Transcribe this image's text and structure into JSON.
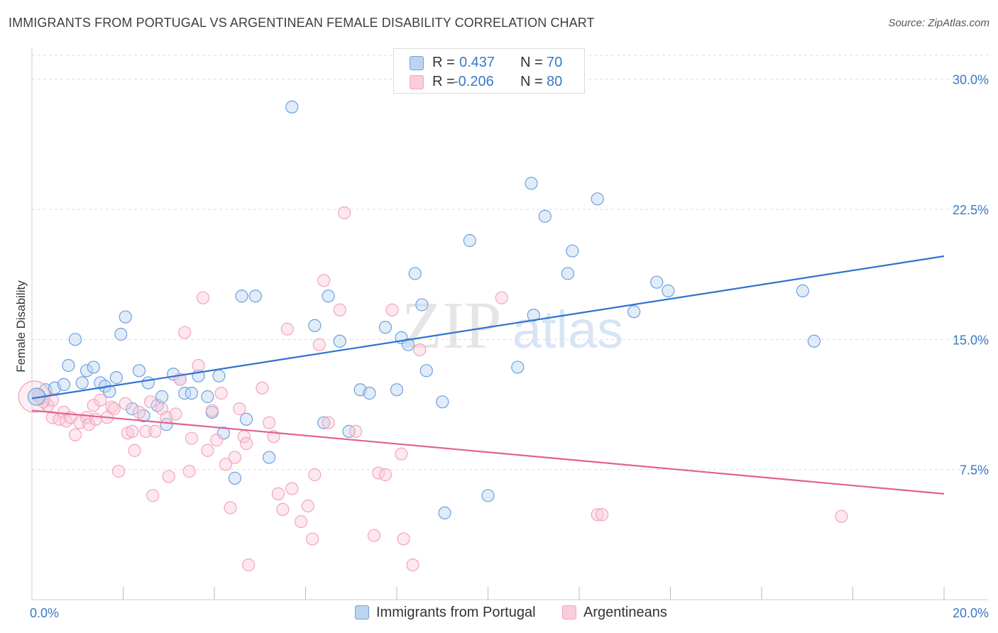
{
  "title": "IMMIGRANTS FROM PORTUGAL VS ARGENTINEAN FEMALE DISABILITY CORRELATION CHART",
  "source": "Source: ZipAtlas.com",
  "watermark": {
    "zip": "ZIP",
    "atlas": "atlas"
  },
  "legend": {
    "r_label": "R =",
    "n_label": "N =",
    "series1": {
      "r": "0.437",
      "n": "70"
    },
    "series2": {
      "r": "-0.206",
      "n": "80"
    }
  },
  "chart_data": {
    "type": "scatter",
    "title": "IMMIGRANTS FROM PORTUGAL VS ARGENTINEAN FEMALE DISABILITY CORRELATION CHART",
    "xlabel": "",
    "ylabel": "Female Disability",
    "xlim": [
      0,
      20
    ],
    "ylim": [
      0,
      31.5
    ],
    "x_tick_labels": [
      "0.0%",
      "20.0%"
    ],
    "y_ticks": [
      7.5,
      15.0,
      22.5,
      30.0
    ],
    "y_tick_labels": [
      "7.5%",
      "15.0%",
      "22.5%",
      "30.0%"
    ],
    "grid": true,
    "legend_position": "top-center",
    "series": [
      {
        "name": "Immigrants from Portugal",
        "color": "#6fa0dc",
        "line_color": "#2f72d0",
        "r": 0.437,
        "n": 70,
        "trend": [
          [
            0,
            11.6
          ],
          [
            20,
            19.8
          ]
        ],
        "points": [
          [
            0.15,
            11.8
          ],
          [
            0.3,
            12.1
          ],
          [
            0.2,
            11.6
          ],
          [
            0.5,
            12.2
          ],
          [
            0.7,
            12.4
          ],
          [
            0.8,
            13.5
          ],
          [
            0.95,
            15.0
          ],
          [
            1.1,
            12.5
          ],
          [
            1.2,
            13.2
          ],
          [
            1.35,
            13.4
          ],
          [
            1.5,
            12.5
          ],
          [
            1.6,
            12.3
          ],
          [
            1.7,
            12.0
          ],
          [
            1.85,
            12.8
          ],
          [
            1.95,
            15.3
          ],
          [
            2.05,
            16.3
          ],
          [
            2.2,
            11.0
          ],
          [
            2.35,
            13.2
          ],
          [
            2.45,
            10.6
          ],
          [
            2.55,
            12.5
          ],
          [
            2.75,
            11.2
          ],
          [
            2.85,
            11.7
          ],
          [
            2.95,
            10.1
          ],
          [
            3.1,
            13.0
          ],
          [
            3.25,
            12.7
          ],
          [
            3.35,
            11.9
          ],
          [
            3.5,
            11.9
          ],
          [
            3.65,
            12.9
          ],
          [
            3.85,
            11.7
          ],
          [
            3.95,
            10.8
          ],
          [
            4.1,
            12.9
          ],
          [
            4.2,
            9.6
          ],
          [
            4.45,
            7.0
          ],
          [
            4.6,
            17.5
          ],
          [
            4.7,
            10.4
          ],
          [
            4.9,
            17.5
          ],
          [
            5.2,
            8.2
          ],
          [
            5.7,
            28.4
          ],
          [
            6.2,
            15.8
          ],
          [
            6.4,
            10.2
          ],
          [
            6.5,
            17.5
          ],
          [
            6.75,
            14.9
          ],
          [
            6.95,
            9.7
          ],
          [
            7.2,
            12.1
          ],
          [
            7.4,
            11.9
          ],
          [
            7.75,
            15.7
          ],
          [
            8.0,
            12.1
          ],
          [
            8.1,
            15.1
          ],
          [
            8.25,
            14.7
          ],
          [
            8.4,
            18.8
          ],
          [
            8.55,
            17.0
          ],
          [
            8.65,
            13.2
          ],
          [
            9.0,
            11.4
          ],
          [
            9.05,
            5.0
          ],
          [
            9.6,
            20.7
          ],
          [
            10.0,
            6.0
          ],
          [
            10.65,
            13.4
          ],
          [
            10.95,
            24.0
          ],
          [
            11.0,
            16.4
          ],
          [
            11.25,
            22.1
          ],
          [
            11.75,
            18.8
          ],
          [
            11.85,
            20.1
          ],
          [
            12.4,
            23.1
          ],
          [
            13.2,
            16.6
          ],
          [
            13.7,
            18.3
          ],
          [
            13.95,
            17.8
          ],
          [
            16.9,
            17.8
          ],
          [
            17.15,
            14.9
          ]
        ]
      },
      {
        "name": "Argentineans",
        "color": "#f3a3bf",
        "line_color": "#e2628f",
        "r": -0.206,
        "n": 80,
        "trend": [
          [
            0,
            10.9
          ],
          [
            20,
            6.1
          ]
        ],
        "points": [
          [
            0.15,
            11.7
          ],
          [
            0.25,
            11.4
          ],
          [
            0.35,
            11.2
          ],
          [
            0.45,
            11.5
          ],
          [
            0.45,
            10.5
          ],
          [
            0.6,
            10.4
          ],
          [
            0.7,
            10.8
          ],
          [
            0.75,
            10.3
          ],
          [
            0.85,
            10.5
          ],
          [
            0.95,
            9.5
          ],
          [
            1.05,
            10.2
          ],
          [
            1.2,
            10.5
          ],
          [
            1.25,
            10.1
          ],
          [
            1.35,
            11.2
          ],
          [
            1.4,
            10.4
          ],
          [
            1.5,
            11.5
          ],
          [
            1.65,
            10.5
          ],
          [
            1.75,
            11.1
          ],
          [
            1.8,
            11.0
          ],
          [
            1.9,
            7.4
          ],
          [
            2.05,
            11.3
          ],
          [
            2.1,
            9.6
          ],
          [
            2.2,
            9.7
          ],
          [
            2.25,
            8.6
          ],
          [
            2.35,
            10.8
          ],
          [
            2.5,
            9.7
          ],
          [
            2.6,
            11.4
          ],
          [
            2.65,
            6.0
          ],
          [
            2.7,
            9.7
          ],
          [
            2.85,
            11.0
          ],
          [
            2.95,
            10.5
          ],
          [
            3.0,
            7.1
          ],
          [
            3.15,
            10.7
          ],
          [
            3.25,
            12.7
          ],
          [
            3.35,
            15.4
          ],
          [
            3.45,
            7.4
          ],
          [
            3.5,
            9.3
          ],
          [
            3.65,
            13.5
          ],
          [
            3.75,
            17.4
          ],
          [
            3.85,
            8.6
          ],
          [
            3.95,
            10.9
          ],
          [
            4.05,
            9.2
          ],
          [
            4.15,
            11.9
          ],
          [
            4.25,
            7.8
          ],
          [
            4.35,
            5.3
          ],
          [
            4.45,
            8.2
          ],
          [
            4.55,
            11.0
          ],
          [
            4.65,
            9.4
          ],
          [
            4.7,
            9.0
          ],
          [
            4.75,
            2.0
          ],
          [
            5.05,
            12.2
          ],
          [
            5.2,
            10.2
          ],
          [
            5.3,
            9.4
          ],
          [
            5.4,
            6.1
          ],
          [
            5.5,
            5.2
          ],
          [
            5.6,
            15.6
          ],
          [
            5.7,
            6.4
          ],
          [
            5.9,
            4.5
          ],
          [
            6.05,
            5.4
          ],
          [
            6.15,
            3.5
          ],
          [
            6.2,
            7.2
          ],
          [
            6.3,
            14.7
          ],
          [
            6.4,
            18.4
          ],
          [
            6.5,
            10.2
          ],
          [
            6.75,
            16.7
          ],
          [
            6.85,
            22.3
          ],
          [
            7.1,
            9.7
          ],
          [
            7.5,
            3.7
          ],
          [
            7.6,
            7.3
          ],
          [
            7.75,
            7.2
          ],
          [
            7.9,
            16.7
          ],
          [
            8.1,
            8.4
          ],
          [
            8.15,
            3.5
          ],
          [
            8.35,
            2.0
          ],
          [
            8.5,
            14.4
          ],
          [
            10.3,
            17.4
          ],
          [
            12.4,
            4.9
          ],
          [
            12.5,
            4.9
          ],
          [
            17.75,
            4.8
          ]
        ]
      }
    ]
  }
}
